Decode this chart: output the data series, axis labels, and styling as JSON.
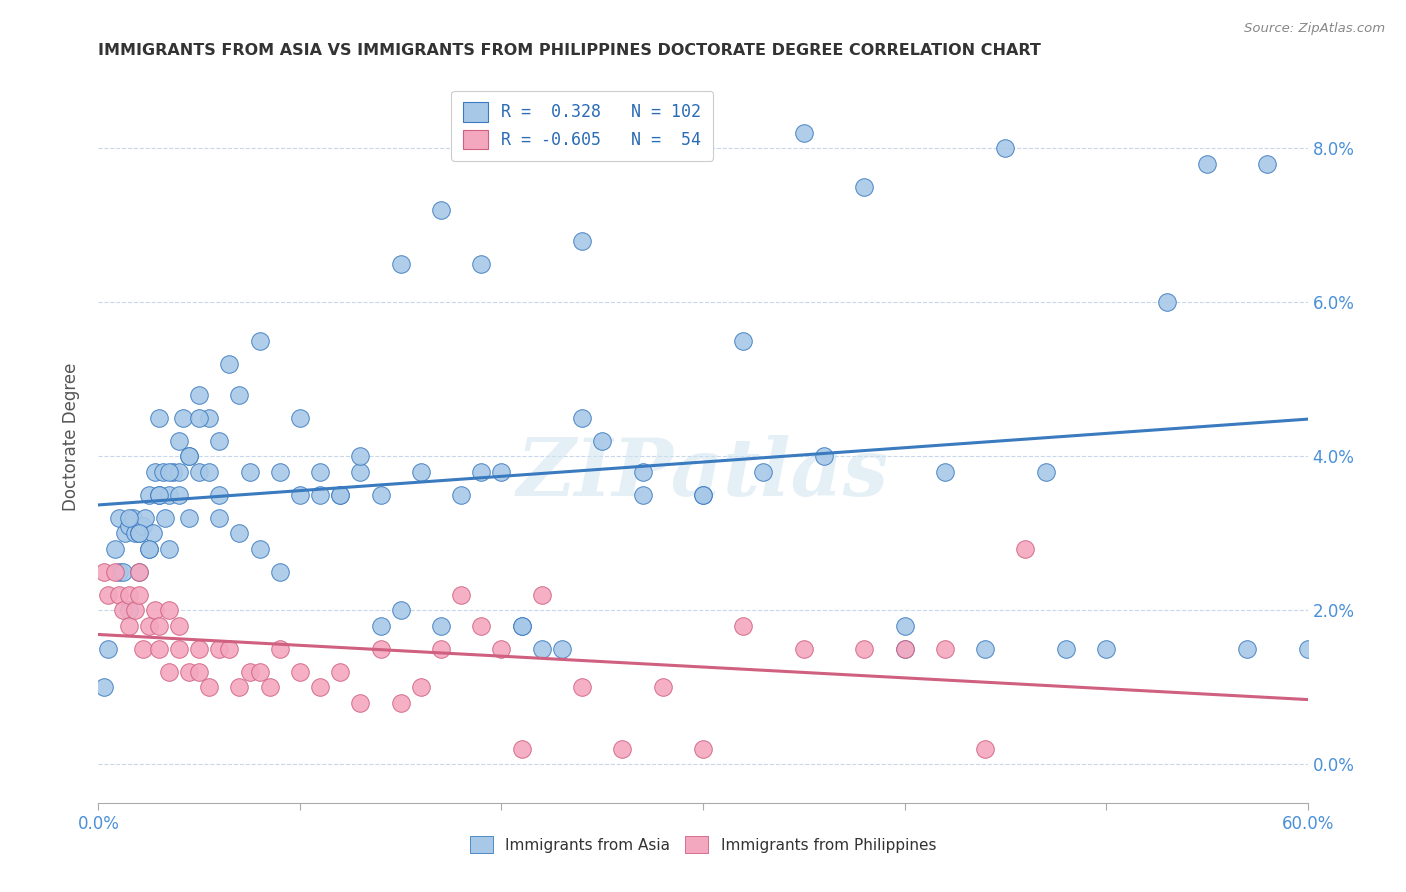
{
  "title": "IMMIGRANTS FROM ASIA VS IMMIGRANTS FROM PHILIPPINES DOCTORATE DEGREE CORRELATION CHART",
  "source": "Source: ZipAtlas.com",
  "ylabel": "Doctorate Degree",
  "ytick_vals": [
    0.0,
    2.0,
    4.0,
    6.0,
    8.0
  ],
  "xrange": [
    0.0,
    60.0
  ],
  "yrange": [
    -0.5,
    9.0
  ],
  "color_asia": "#a8c8e8",
  "color_phil": "#f4a8c0",
  "line_color_asia": "#3a7abf",
  "line_color_phil": "#d06080",
  "background_color": "#ffffff",
  "watermark": "ZIPatlas",
  "asia_x": [
    0.3,
    0.5,
    0.8,
    1.0,
    1.0,
    1.2,
    1.3,
    1.5,
    1.5,
    1.7,
    1.8,
    2.0,
    2.0,
    2.2,
    2.3,
    2.5,
    2.5,
    2.7,
    2.8,
    3.0,
    3.0,
    3.2,
    3.3,
    3.5,
    3.5,
    3.7,
    4.0,
    4.0,
    4.2,
    4.5,
    4.5,
    5.0,
    5.0,
    5.5,
    6.0,
    6.0,
    6.5,
    7.0,
    7.5,
    8.0,
    9.0,
    10.0,
    11.0,
    12.0,
    13.0,
    14.0,
    15.0,
    16.0,
    17.0,
    18.0,
    19.0,
    20.0,
    21.0,
    22.0,
    23.0,
    24.0,
    25.0,
    27.0,
    30.0,
    32.0,
    35.0,
    38.0,
    40.0,
    42.0,
    45.0,
    47.0,
    50.0,
    53.0,
    55.0,
    57.0,
    58.0,
    60.0,
    1.5,
    2.0,
    2.5,
    3.0,
    3.5,
    4.0,
    4.5,
    5.0,
    5.5,
    6.0,
    7.0,
    8.0,
    9.0,
    10.0,
    11.0,
    12.0,
    13.0,
    14.0,
    15.0,
    17.0,
    19.0,
    21.0,
    24.0,
    27.0,
    30.0,
    33.0,
    36.0,
    40.0,
    44.0,
    48.0
  ],
  "asia_y": [
    1.0,
    1.5,
    2.8,
    2.5,
    3.2,
    2.5,
    3.0,
    3.1,
    2.0,
    3.2,
    3.0,
    3.0,
    2.5,
    3.1,
    3.2,
    2.8,
    3.5,
    3.0,
    3.8,
    3.5,
    4.5,
    3.8,
    3.2,
    3.5,
    2.8,
    3.8,
    4.2,
    3.8,
    4.5,
    4.0,
    3.2,
    3.8,
    4.8,
    4.5,
    3.5,
    4.2,
    5.2,
    4.8,
    3.8,
    5.5,
    3.8,
    4.5,
    3.5,
    3.5,
    3.8,
    3.5,
    6.5,
    3.8,
    7.2,
    3.5,
    6.5,
    3.8,
    1.8,
    1.5,
    1.5,
    6.8,
    4.2,
    3.8,
    3.5,
    5.5,
    8.2,
    7.5,
    1.5,
    3.8,
    8.0,
    3.8,
    1.5,
    6.0,
    7.8,
    1.5,
    7.8,
    1.5,
    3.2,
    3.0,
    2.8,
    3.5,
    3.8,
    3.5,
    4.0,
    4.5,
    3.8,
    3.2,
    3.0,
    2.8,
    2.5,
    3.5,
    3.8,
    3.5,
    4.0,
    1.8,
    2.0,
    1.8,
    3.8,
    1.8,
    4.5,
    3.5,
    3.5,
    3.8,
    4.0,
    1.8,
    1.5,
    1.5
  ],
  "phil_x": [
    0.3,
    0.5,
    0.8,
    1.0,
    1.2,
    1.5,
    1.5,
    1.8,
    2.0,
    2.0,
    2.2,
    2.5,
    2.8,
    3.0,
    3.0,
    3.5,
    3.5,
    4.0,
    4.0,
    4.5,
    5.0,
    5.0,
    5.5,
    6.0,
    6.5,
    7.0,
    7.5,
    8.0,
    8.5,
    9.0,
    10.0,
    11.0,
    12.0,
    13.0,
    14.0,
    15.0,
    16.0,
    17.0,
    18.0,
    19.0,
    20.0,
    21.0,
    22.0,
    24.0,
    26.0,
    28.0,
    30.0,
    32.0,
    35.0,
    38.0,
    40.0,
    42.0,
    44.0,
    46.0
  ],
  "phil_y": [
    2.5,
    2.2,
    2.5,
    2.2,
    2.0,
    2.2,
    1.8,
    2.0,
    2.2,
    2.5,
    1.5,
    1.8,
    2.0,
    1.8,
    1.5,
    2.0,
    1.2,
    1.8,
    1.5,
    1.2,
    1.5,
    1.2,
    1.0,
    1.5,
    1.5,
    1.0,
    1.2,
    1.2,
    1.0,
    1.5,
    1.2,
    1.0,
    1.2,
    0.8,
    1.5,
    0.8,
    1.0,
    1.5,
    2.2,
    1.8,
    1.5,
    0.2,
    2.2,
    1.0,
    0.2,
    1.0,
    0.2,
    1.8,
    1.5,
    1.5,
    1.5,
    1.5,
    0.2,
    2.8
  ]
}
